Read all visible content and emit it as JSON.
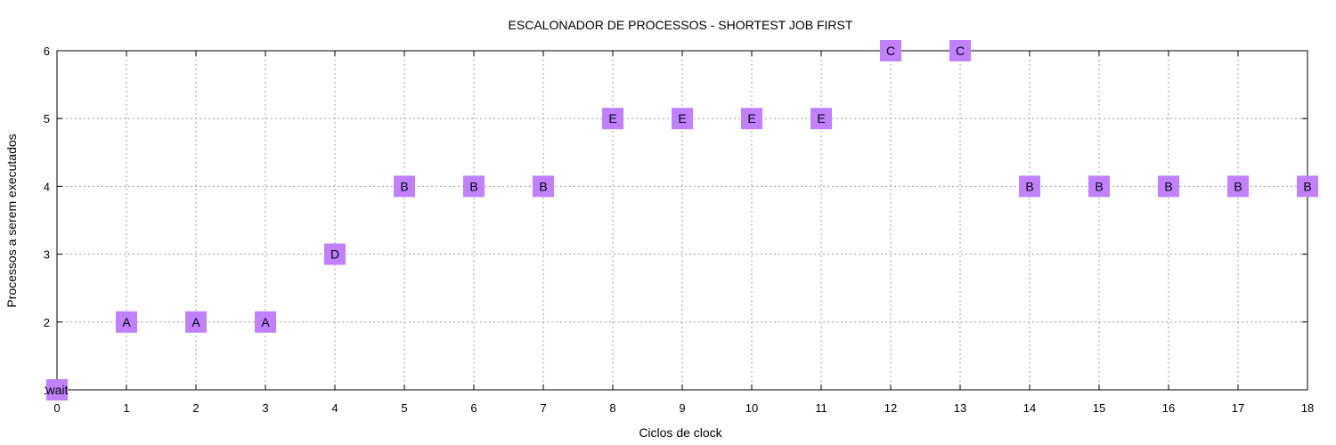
{
  "chart_data": {
    "type": "scatter",
    "title": "ESCALONADOR DE PROCESSOS - SHORTEST JOB FIRST",
    "xlabel": "Ciclos de clock",
    "ylabel": "Processos a serem executados",
    "xlim": [
      0,
      18
    ],
    "ylim": [
      1,
      6
    ],
    "x_ticks": [
      "0",
      "1",
      "2",
      "3",
      "4",
      "5",
      "6",
      "7",
      "8",
      "9",
      "10",
      "11",
      "12",
      "13",
      "14",
      "15",
      "16",
      "17",
      "18"
    ],
    "y_ticks": [
      "1",
      "2",
      "3",
      "4",
      "5",
      "6"
    ],
    "grid": true,
    "marker_color": "#c080ff",
    "points": [
      {
        "x": 0,
        "y": 1,
        "label": "wait"
      },
      {
        "x": 1,
        "y": 2,
        "label": "A"
      },
      {
        "x": 2,
        "y": 2,
        "label": "A"
      },
      {
        "x": 3,
        "y": 2,
        "label": "A"
      },
      {
        "x": 4,
        "y": 3,
        "label": "D"
      },
      {
        "x": 5,
        "y": 4,
        "label": "B"
      },
      {
        "x": 6,
        "y": 4,
        "label": "B"
      },
      {
        "x": 7,
        "y": 4,
        "label": "B"
      },
      {
        "x": 8,
        "y": 5,
        "label": "E"
      },
      {
        "x": 9,
        "y": 5,
        "label": "E"
      },
      {
        "x": 10,
        "y": 5,
        "label": "E"
      },
      {
        "x": 11,
        "y": 5,
        "label": "E"
      },
      {
        "x": 12,
        "y": 6,
        "label": "C"
      },
      {
        "x": 13,
        "y": 6,
        "label": "C"
      },
      {
        "x": 14,
        "y": 4,
        "label": "B"
      },
      {
        "x": 15,
        "y": 4,
        "label": "B"
      },
      {
        "x": 16,
        "y": 4,
        "label": "B"
      },
      {
        "x": 17,
        "y": 4,
        "label": "B"
      },
      {
        "x": 18,
        "y": 4,
        "label": "B"
      }
    ]
  }
}
